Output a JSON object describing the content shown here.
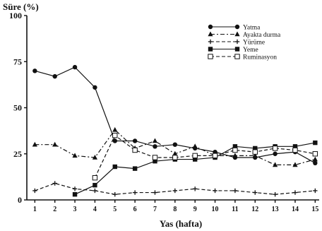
{
  "chart_data": {
    "type": "line",
    "title": "",
    "ylabel": "Süre (%)",
    "xlabel": "Yas (hafta)",
    "x": [
      1,
      2,
      3,
      4,
      5,
      6,
      7,
      8,
      9,
      10,
      11,
      12,
      13,
      14,
      15
    ],
    "xlim": [
      0.6,
      15.2
    ],
    "ylim": [
      0,
      100
    ],
    "yticks": [
      0,
      25,
      50,
      75,
      100
    ],
    "ytick_labels": [
      "0",
      "25",
      "50",
      "75",
      "100"
    ],
    "grid": false,
    "legend_position": "top-right",
    "series": [
      {
        "name": "Yatma",
        "marker": "filled-circle",
        "dash": "solid",
        "values": [
          70,
          67,
          72,
          61,
          32,
          32,
          29,
          30,
          28,
          26,
          23,
          23,
          25,
          26,
          20
        ]
      },
      {
        "name": "Ayakta durma",
        "marker": "filled-triangle",
        "dash": "dash-dot",
        "values": [
          30,
          30,
          24,
          23,
          38,
          28,
          32,
          25,
          29,
          24,
          24,
          24,
          19,
          19,
          22
        ]
      },
      {
        "name": "Yürüme",
        "marker": "plus",
        "dash": "dashed",
        "values": [
          5,
          9,
          6,
          5,
          3,
          4,
          4,
          5,
          6,
          5,
          5,
          4,
          3,
          4,
          5
        ]
      },
      {
        "name": "Yeme",
        "marker": "filled-square",
        "dash": "solid",
        "values": [
          null,
          null,
          3,
          8,
          18,
          17,
          21,
          22,
          22,
          23,
          29,
          28,
          29,
          29,
          31
        ]
      },
      {
        "name": "Ruminasyon",
        "marker": "open-square",
        "dash": "dashed",
        "values": [
          null,
          null,
          null,
          12,
          35,
          27,
          23,
          23,
          24,
          24,
          27,
          26,
          28,
          27,
          25
        ]
      }
    ]
  }
}
